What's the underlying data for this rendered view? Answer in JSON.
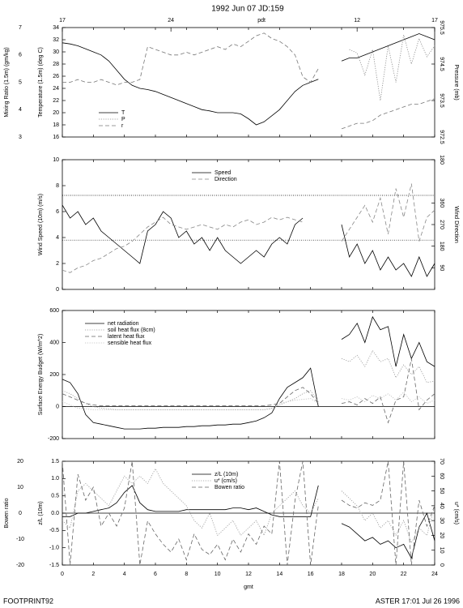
{
  "footer": {
    "left": "FOOTPRINT92",
    "right": "ASTER 17:01 Jul 26 1996"
  },
  "chart_data": [
    {
      "type": "line",
      "title": "1992 Jun 07 JD:159",
      "top_ticks": [
        {
          "value": 0,
          "label": "17"
        },
        {
          "value": 7,
          "label": "24"
        },
        {
          "value": 19,
          "label": "12"
        },
        {
          "value": 24,
          "label": "17"
        }
      ],
      "top_label": "pdt",
      "ylabel": "Temperature (1.5m) (deg C)",
      "y3label": "Mixing Ratio (1.5m) (gm/kg)",
      "y2label": "Pressure (mb)",
      "xlim": [
        0,
        24
      ],
      "xticks": [
        0,
        2,
        4,
        6,
        8,
        10,
        12,
        14,
        16,
        18,
        20,
        22,
        24
      ],
      "ylim": [
        16,
        34
      ],
      "yticks": [
        16,
        18,
        20,
        22,
        24,
        26,
        28,
        30,
        32,
        34
      ],
      "y3lim": [
        3,
        7
      ],
      "y3ticks": [
        3,
        4,
        5,
        6,
        7
      ],
      "y2lim": [
        972.5,
        975.5
      ],
      "y2ticks": [
        972.5,
        973.5,
        974.5,
        975.5
      ],
      "legend": "lower left",
      "x": [
        0,
        0.5,
        1,
        1.5,
        2,
        2.5,
        3,
        3.5,
        4,
        4.5,
        5,
        5.5,
        6,
        6.5,
        7,
        7.5,
        8,
        8.5,
        9,
        9.5,
        10,
        10.5,
        11,
        11.5,
        12,
        12.5,
        13,
        13.5,
        14,
        14.5,
        15,
        15.5,
        16,
        16.5,
        17,
        17.5,
        18,
        18.5,
        19,
        19.5,
        20,
        20.5,
        21,
        21.5,
        22,
        22.5,
        23,
        23.5,
        24
      ],
      "series": [
        {
          "name": "T",
          "color": "#000000",
          "dash": "solid",
          "axis": "y",
          "values": [
            31.5,
            31.3,
            31,
            30.5,
            30,
            29.5,
            28.5,
            27,
            25.5,
            24.5,
            24,
            23.8,
            23.5,
            23,
            22.5,
            22,
            21.5,
            21,
            20.5,
            20.3,
            20,
            20,
            20,
            19.8,
            19,
            18,
            18.5,
            19.5,
            20.5,
            22,
            23.5,
            24.5,
            25,
            25.5,
            null,
            null,
            28.5,
            29,
            29,
            29.5,
            30,
            30.5,
            31,
            31.5,
            32,
            32.5,
            33,
            32.5,
            32
          ]
        },
        {
          "name": "P",
          "color": "#888888",
          "dash": "dotted",
          "axis": "y2",
          "values": [
            null,
            null,
            null,
            null,
            null,
            null,
            null,
            null,
            null,
            null,
            null,
            null,
            null,
            null,
            null,
            null,
            null,
            null,
            null,
            null,
            null,
            null,
            null,
            null,
            null,
            null,
            null,
            null,
            null,
            null,
            null,
            null,
            null,
            null,
            null,
            null,
            null,
            974.9,
            974.8,
            974.2,
            974.9,
            973.5,
            975.0,
            974.0,
            975.3,
            974.5,
            975.2,
            974.7,
            975.0
          ]
        },
        {
          "name": "r",
          "color": "#777777",
          "dash": "dashed",
          "axis": "y3",
          "values": [
            5,
            5,
            5.1,
            5,
            5,
            5.1,
            5,
            4.9,
            5,
            5,
            5.1,
            6.3,
            6.2,
            6.1,
            6,
            6,
            6.1,
            6,
            6.1,
            6.2,
            6.3,
            6.2,
            6.4,
            6.3,
            6.5,
            6.7,
            6.8,
            6.6,
            6.5,
            6.3,
            6,
            5.2,
            5,
            5.5,
            null,
            null,
            3.3,
            3.4,
            3.5,
            3.5,
            3.6,
            3.8,
            3.9,
            4,
            4.1,
            4.2,
            4.2,
            4.3,
            4.4
          ]
        }
      ]
    },
    {
      "type": "line",
      "ylabel": "Wind Speed (10m) (m/s)",
      "y2label": "Wind Direction",
      "xlim": [
        0,
        24
      ],
      "xticks": [
        0,
        2,
        4,
        6,
        8,
        10,
        12,
        14,
        16,
        18,
        20,
        22,
        24
      ],
      "ylim": [
        0,
        10
      ],
      "yticks": [
        0,
        2,
        4,
        6,
        8,
        10
      ],
      "y2lim": [
        0,
        540
      ],
      "y2ticks": [
        90,
        180,
        270,
        360,
        {
          "value": 540,
          "label": "180"
        }
      ],
      "hlines": [
        7.25,
        3.8
      ],
      "legend": "upper center",
      "x": [
        0,
        0.5,
        1,
        1.5,
        2,
        2.5,
        3,
        3.5,
        4,
        4.5,
        5,
        5.5,
        6,
        6.5,
        7,
        7.5,
        8,
        8.5,
        9,
        9.5,
        10,
        10.5,
        11,
        11.5,
        12,
        12.5,
        13,
        13.5,
        14,
        14.5,
        15,
        15.5,
        16,
        16.5,
        17,
        17.5,
        18,
        18.5,
        19,
        19.5,
        20,
        20.5,
        21,
        21.5,
        22,
        22.5,
        23,
        23.5,
        24
      ],
      "series": [
        {
          "name": "Speed",
          "color": "#000000",
          "dash": "solid",
          "axis": "y",
          "values": [
            6.5,
            5.5,
            6,
            5,
            5.5,
            4.5,
            4,
            3.5,
            3,
            2.5,
            2,
            4.5,
            5,
            6,
            5.5,
            4,
            4.5,
            3.5,
            4,
            3,
            4,
            3,
            2.5,
            2,
            2.5,
            3,
            2.5,
            3.5,
            4,
            3.5,
            5,
            5.5,
            null,
            null,
            null,
            null,
            5,
            2.5,
            3.5,
            2,
            3,
            1.5,
            2.5,
            1.5,
            2,
            1,
            2.5,
            1,
            2
          ]
        },
        {
          "name": "Direction",
          "color": "#888888",
          "dash": "dashed",
          "axis": "y2",
          "values": [
            80,
            70,
            90,
            100,
            120,
            130,
            150,
            170,
            180,
            200,
            230,
            260,
            280,
            300,
            270,
            260,
            250,
            260,
            270,
            260,
            250,
            270,
            260,
            280,
            290,
            270,
            280,
            300,
            290,
            300,
            290,
            280,
            null,
            null,
            null,
            null,
            200,
            250,
            300,
            350,
            280,
            380,
            230,
            420,
            300,
            440,
            200,
            300,
            330
          ]
        }
      ]
    },
    {
      "type": "line",
      "ylabel": "Surface Energy Budget (W/m^2)",
      "xlim": [
        0,
        24
      ],
      "xticks": [
        0,
        2,
        4,
        6,
        8,
        10,
        12,
        14,
        16,
        18,
        20,
        22,
        24
      ],
      "ylim": [
        -200,
        600
      ],
      "yticks": [
        -200,
        0,
        200,
        400,
        600
      ],
      "zero_line": true,
      "legend": "upper left",
      "x": [
        0,
        0.5,
        1,
        1.5,
        2,
        2.5,
        3,
        3.5,
        4,
        4.5,
        5,
        5.5,
        6,
        6.5,
        7,
        7.5,
        8,
        8.5,
        9,
        9.5,
        10,
        10.5,
        11,
        11.5,
        12,
        12.5,
        13,
        13.5,
        14,
        14.5,
        15,
        15.5,
        16,
        16.5,
        17,
        17.5,
        18,
        18.5,
        19,
        19.5,
        20,
        20.5,
        21,
        21.5,
        22,
        22.5,
        23,
        23.5,
        24
      ],
      "series": [
        {
          "name": "net radiation",
          "color": "#000000",
          "dash": "solid",
          "axis": "y",
          "values": [
            170,
            150,
            80,
            -50,
            -100,
            -110,
            -120,
            -130,
            -140,
            -140,
            -140,
            -135,
            -135,
            -130,
            -130,
            -130,
            -125,
            -125,
            -120,
            -120,
            -115,
            -115,
            -110,
            -110,
            -100,
            -90,
            -70,
            -40,
            50,
            120,
            150,
            180,
            240,
            0,
            null,
            null,
            420,
            450,
            520,
            400,
            560,
            480,
            500,
            250,
            450,
            300,
            400,
            280,
            250
          ]
        },
        {
          "name": "soil heat flux (8cm)",
          "color": "#999999",
          "dash": "dotted",
          "axis": "y",
          "values": [
            100,
            80,
            50,
            20,
            0,
            -10,
            -15,
            -20,
            -20,
            -20,
            -20,
            -20,
            -20,
            -20,
            -20,
            -20,
            -20,
            -20,
            -20,
            -20,
            -20,
            -20,
            -20,
            -20,
            -20,
            -20,
            -20,
            -10,
            10,
            30,
            50,
            80,
            100,
            30,
            null,
            null,
            300,
            280,
            320,
            250,
            350,
            280,
            300,
            180,
            260,
            200,
            250,
            150,
            160
          ]
        },
        {
          "name": "latent heat flux",
          "color": "#666666",
          "dash": "dashed",
          "axis": "y",
          "values": [
            80,
            60,
            40,
            20,
            10,
            5,
            5,
            5,
            5,
            5,
            5,
            5,
            5,
            5,
            5,
            5,
            5,
            5,
            5,
            5,
            5,
            5,
            5,
            5,
            5,
            5,
            5,
            10,
            20,
            60,
            100,
            120,
            80,
            20,
            null,
            null,
            20,
            30,
            10,
            50,
            20,
            60,
            -100,
            40,
            60,
            300,
            -20,
            40,
            80
          ]
        },
        {
          "name": "sensible heat flux",
          "color": "#bbbbbb",
          "dash": "dotted",
          "axis": "y",
          "values": [
            30,
            10,
            -10,
            -15,
            -20,
            -20,
            -20,
            -20,
            -20,
            -20,
            -20,
            -20,
            -20,
            -20,
            -20,
            -20,
            -20,
            -20,
            -20,
            -20,
            -20,
            -20,
            -20,
            -20,
            -20,
            -20,
            -20,
            -15,
            20,
            30,
            40,
            45,
            50,
            20,
            null,
            null,
            50,
            40,
            60,
            30,
            70,
            50,
            80,
            40,
            90,
            30,
            60,
            20,
            40
          ]
        }
      ]
    },
    {
      "type": "line",
      "ylabel": "z/L (10m)",
      "y3label": "Bowen ratio",
      "y2label": "u* (cm/s)",
      "xlabel": "gmt",
      "xlim": [
        0,
        24
      ],
      "xticks": [
        0,
        2,
        4,
        6,
        8,
        10,
        12,
        14,
        16,
        18,
        20,
        22,
        24
      ],
      "ylim": [
        -1.5,
        1.5
      ],
      "yticks": [
        -1.5,
        {
          "value": -1,
          "label": "-1.0"
        },
        -0.5,
        {
          "value": 0,
          "label": "0.0"
        },
        0.5,
        {
          "value": 1,
          "label": "1.0"
        },
        1.5
      ],
      "y3lim": [
        -20,
        20
      ],
      "y3ticks": [
        -20,
        -10,
        0,
        10,
        20
      ],
      "y2lim": [
        0,
        70
      ],
      "y2ticks": [
        0,
        10,
        20,
        30,
        40,
        50,
        60,
        70
      ],
      "zero_line": true,
      "legend": "upper center",
      "x": [
        0,
        0.5,
        1,
        1.5,
        2,
        2.5,
        3,
        3.5,
        4,
        4.5,
        5,
        5.5,
        6,
        6.5,
        7,
        7.5,
        8,
        8.5,
        9,
        9.5,
        10,
        10.5,
        11,
        11.5,
        12,
        12.5,
        13,
        13.5,
        14,
        14.5,
        15,
        15.5,
        16,
        16.5,
        17,
        17.5,
        18,
        18.5,
        19,
        19.5,
        20,
        20.5,
        21,
        21.5,
        22,
        22.5,
        23,
        23.5,
        24
      ],
      "series": [
        {
          "name": "z/L (10m)",
          "color": "#000000",
          "dash": "solid",
          "axis": "y",
          "values": [
            -0.1,
            -0.1,
            0,
            0,
            0.05,
            0.1,
            0.15,
            0.3,
            0.6,
            0.8,
            0.3,
            0.1,
            0.05,
            0.05,
            0.05,
            0.05,
            0.1,
            0.1,
            0.1,
            0.1,
            0.1,
            0.1,
            0.15,
            0.15,
            0.1,
            0.15,
            0.05,
            -0.05,
            -0.1,
            -0.1,
            -0.1,
            -0.1,
            -0.1,
            0.8,
            null,
            null,
            -0.3,
            -0.4,
            -0.6,
            -0.8,
            -0.7,
            -0.9,
            -0.8,
            -1,
            -0.9,
            -1.3,
            -0.4,
            0,
            -0.8
          ]
        },
        {
          "name": "u* (cm/s)",
          "color": "#999999",
          "dash": "dotted",
          "axis": "y2",
          "values": [
            30,
            25,
            50,
            55,
            50,
            45,
            40,
            50,
            60,
            55,
            60,
            55,
            65,
            55,
            50,
            45,
            40,
            30,
            25,
            35,
            20,
            25,
            30,
            20,
            25,
            30,
            20,
            35,
            40,
            45,
            50,
            40,
            35,
            45,
            null,
            null,
            50,
            45,
            40,
            30,
            35,
            25,
            30,
            20,
            30,
            15,
            25,
            20,
            40
          ]
        },
        {
          "name": "Bowen ratio",
          "color": "#666666",
          "dash": "dashed",
          "axis": "y3",
          "values": [
            20,
            -20,
            15,
            5,
            10,
            -5,
            0,
            -5,
            2,
            20,
            -20,
            -3,
            -8,
            -12,
            -15,
            -10,
            -18,
            -8,
            -14,
            -16,
            -12,
            -18,
            -10,
            -15,
            -8,
            -12,
            -5,
            -8,
            20,
            -20,
            5,
            20,
            -20,
            3,
            null,
            null,
            5,
            3,
            2,
            4,
            3,
            5,
            20,
            -20,
            20,
            -20,
            5,
            -5,
            3
          ]
        }
      ]
    }
  ]
}
